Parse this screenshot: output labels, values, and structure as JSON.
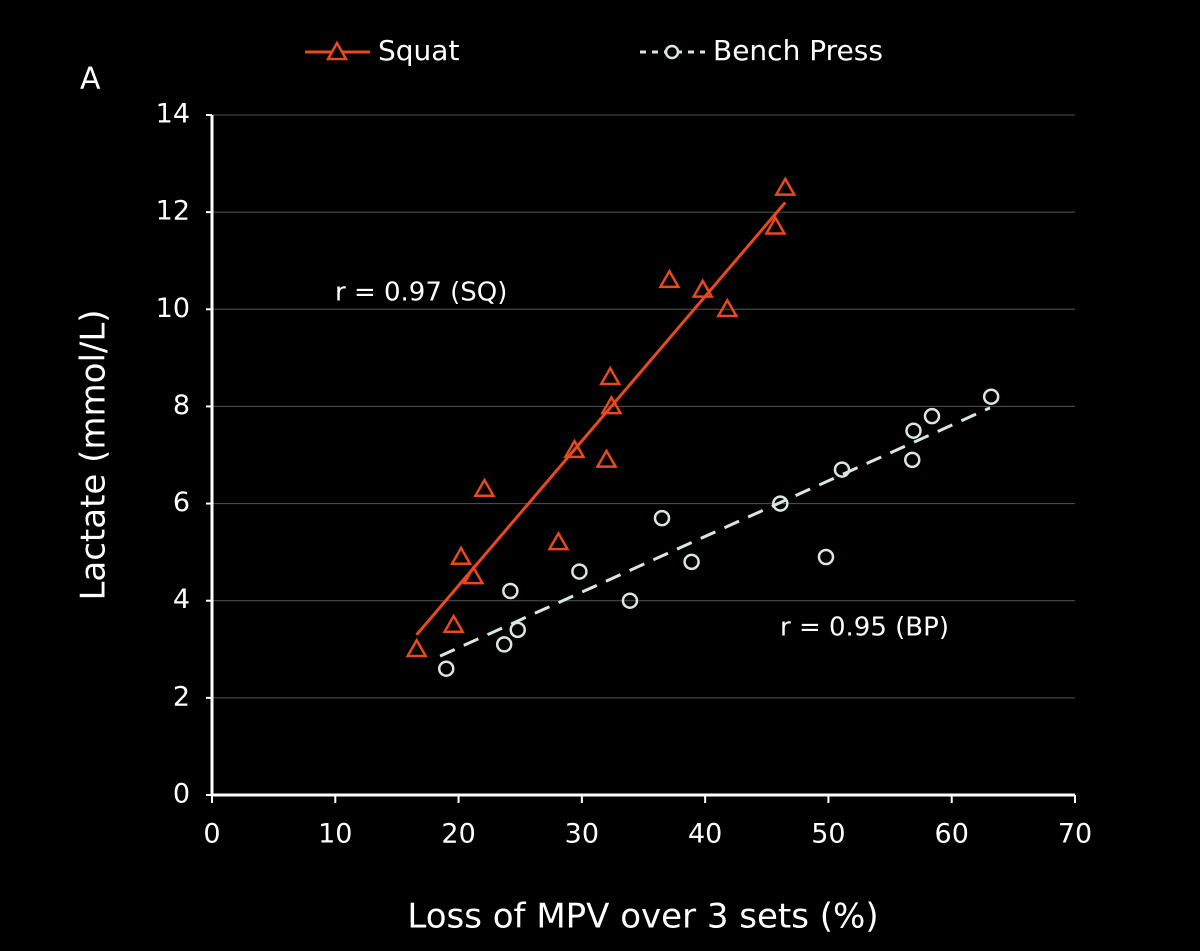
{
  "chart_data": {
    "type": "scatter",
    "panel_label": "A",
    "x_label": "Loss of MPV over 3 sets (%)",
    "y_label": "Lactate (mmol/L)",
    "xlim": [
      0,
      70
    ],
    "xticks": [
      0,
      10,
      20,
      30,
      40,
      50,
      60,
      70
    ],
    "ylim": [
      0,
      14
    ],
    "yticks": [
      0,
      2,
      4,
      6,
      8,
      10,
      12,
      14
    ],
    "grid": true,
    "legend": "top",
    "annotations": [
      "r = 0.97 (SQ)",
      "r = 0.95 (BP)"
    ],
    "series": [
      {
        "name": "Squat",
        "color": "#e8491d",
        "marker": "triangle",
        "line": "solid",
        "x": [
          16.6,
          19.6,
          20.2,
          21.2,
          22.1,
          28.1,
          29.4,
          32.0,
          32.3,
          32.4,
          37.1,
          39.8,
          41.8,
          45.7,
          46.5
        ],
        "y": [
          3.0,
          3.5,
          4.9,
          4.5,
          6.3,
          5.2,
          7.1,
          6.9,
          8.6,
          8.0,
          10.6,
          10.4,
          10.0,
          11.7,
          12.5
        ],
        "fit": {
          "x": [
            16.6,
            46.5
          ],
          "y": [
            3.3,
            12.2
          ]
        }
      },
      {
        "name": "Bench Press",
        "color": "#d8e8e0",
        "marker": "circle",
        "line": "dashed",
        "x": [
          19.0,
          23.7,
          24.2,
          24.8,
          29.8,
          33.9,
          36.5,
          38.9,
          46.1,
          49.8,
          51.1,
          56.8,
          56.9,
          58.4,
          63.2
        ],
        "y": [
          2.6,
          3.1,
          4.2,
          3.4,
          4.6,
          4.0,
          5.7,
          4.8,
          6.0,
          4.9,
          6.7,
          6.9,
          7.5,
          7.8,
          8.2
        ],
        "fit": {
          "x": [
            18.5,
            63.1
          ],
          "y": [
            2.86,
            7.97
          ]
        }
      }
    ]
  }
}
